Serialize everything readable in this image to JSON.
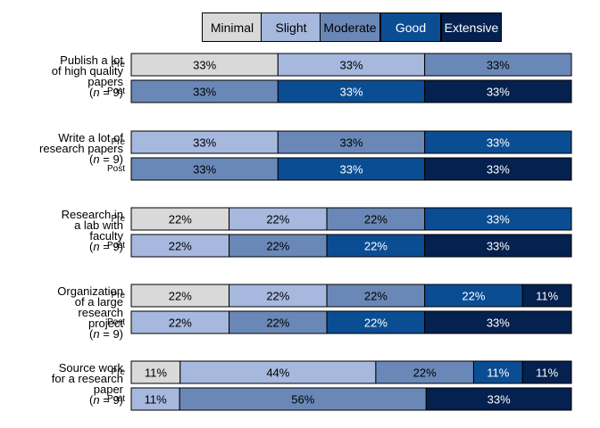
{
  "chart_data": {
    "type": "bar",
    "orientation": "horizontal",
    "stacked": "percent",
    "legend": {
      "placement": "top",
      "items": [
        {
          "name": "Minimal",
          "color": "#d9d9d9",
          "text_color": "#000000"
        },
        {
          "name": "Slight",
          "color": "#a6b8de",
          "text_color": "#000000"
        },
        {
          "name": "Moderate",
          "color": "#6a88b7",
          "text_color": "#000000"
        },
        {
          "name": "Good",
          "color": "#0b4d93",
          "text_color": "#ffffff"
        },
        {
          "name": "Extensive",
          "color": "#04214f",
          "text_color": "#ffffff"
        }
      ]
    },
    "groups": [
      {
        "label_lines": [
          "Publish a lot",
          "of high quality",
          "papers"
        ],
        "n_label": "(n = 9)",
        "rows": [
          {
            "label": "Pre",
            "values": [
              33,
              33,
              33,
              0,
              0
            ]
          },
          {
            "label": "Post",
            "values": [
              0,
              0,
              33,
              33,
              33
            ]
          }
        ]
      },
      {
        "label_lines": [
          "Write a lot of",
          "research papers"
        ],
        "n_label": "(n = 9)",
        "rows": [
          {
            "label": "Pre",
            "values": [
              0,
              33,
              33,
              33,
              0
            ]
          },
          {
            "label": "Post",
            "values": [
              0,
              0,
              33,
              33,
              33
            ]
          }
        ]
      },
      {
        "label_lines": [
          "Research in",
          "a lab with",
          "faculty"
        ],
        "n_label": "(n = 9)",
        "rows": [
          {
            "label": "Pre",
            "values": [
              22,
              22,
              22,
              33,
              0
            ]
          },
          {
            "label": "Post",
            "values": [
              0,
              22,
              22,
              22,
              33
            ]
          }
        ]
      },
      {
        "label_lines": [
          "Organization",
          "of a large",
          "research",
          "project"
        ],
        "n_label": "(n = 9)",
        "rows": [
          {
            "label": "Pre",
            "values": [
              22,
              22,
              22,
              22,
              11
            ]
          },
          {
            "label": "Post",
            "values": [
              0,
              22,
              22,
              22,
              33
            ]
          }
        ]
      },
      {
        "label_lines": [
          "Source work",
          "for a research",
          "paper"
        ],
        "n_label": "(n = 9)",
        "rows": [
          {
            "label": "Pre",
            "values": [
              11,
              44,
              22,
              11,
              11
            ]
          },
          {
            "label": "Post",
            "values": [
              0,
              11,
              56,
              0,
              33
            ]
          }
        ]
      }
    ]
  }
}
